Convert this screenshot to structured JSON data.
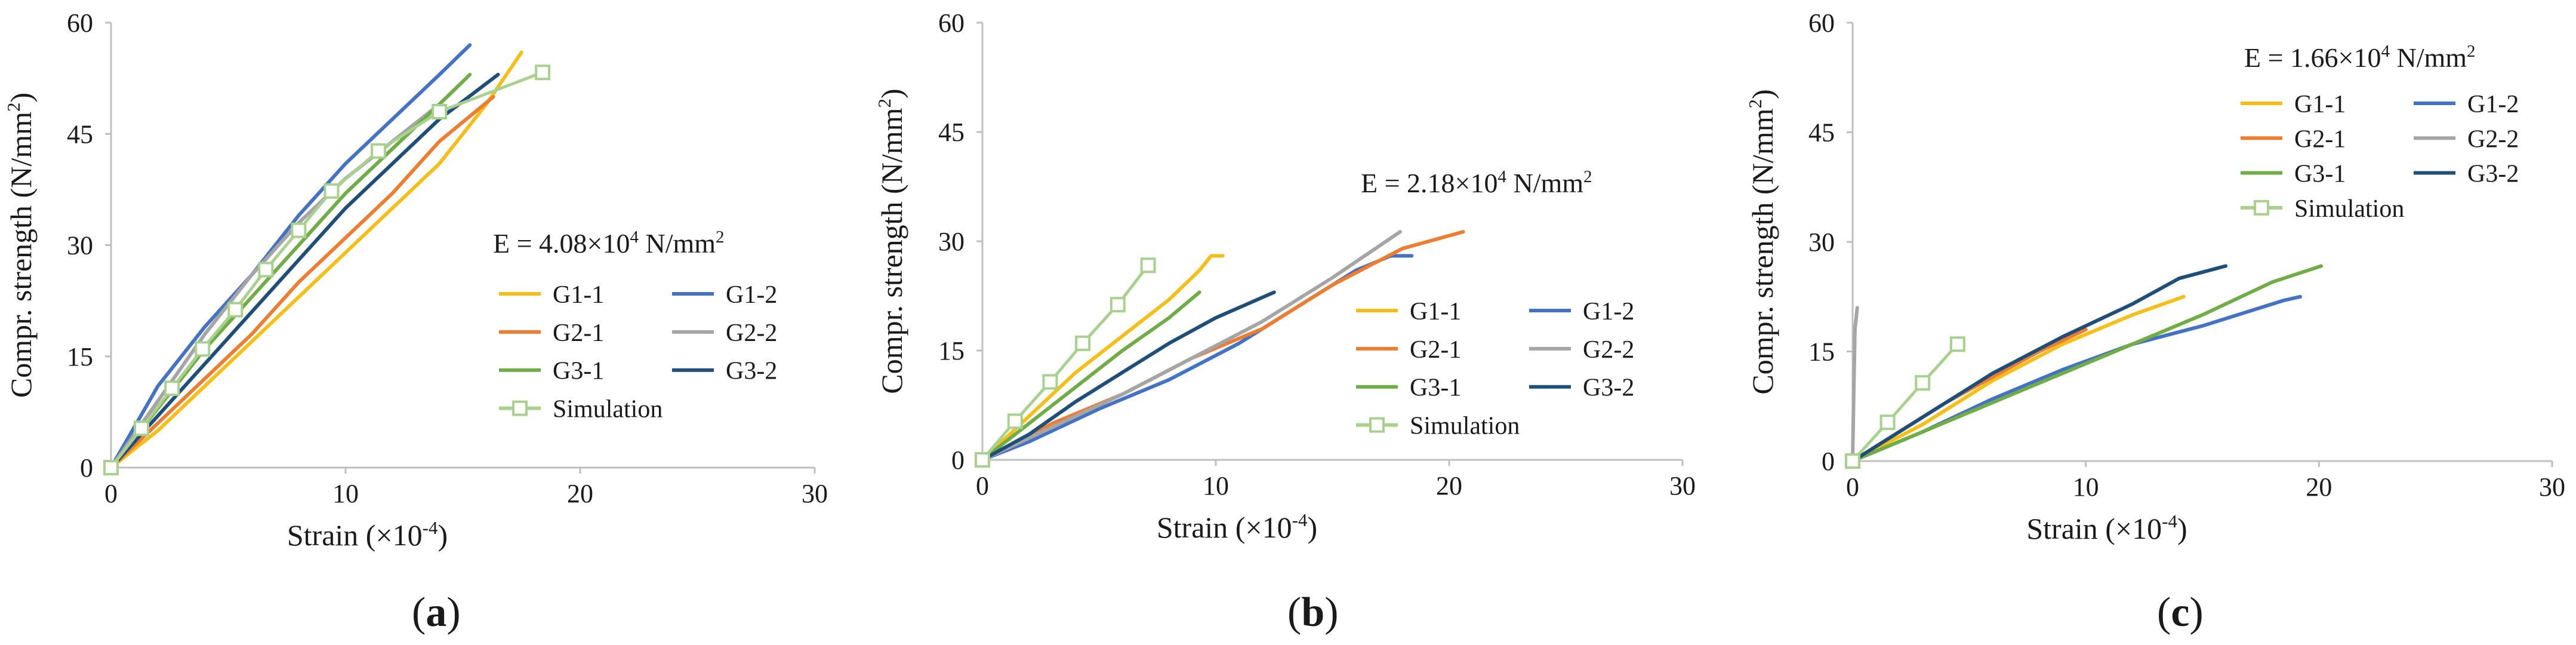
{
  "colors": {
    "G1-1": "#F5BF1A",
    "G1-2": "#4472C4",
    "G2-1": "#ED7D31",
    "G2-2": "#A5A5A5",
    "G3-1": "#70AD47",
    "G3-2": "#1F4E79",
    "Simulation": "#A9D18E",
    "axis": "#BFBFBF",
    "text": "#1a1a1a"
  },
  "chart_data": [
    {
      "type": "line",
      "panel_label": "(a)",
      "xlabel": "Strain (×10⁻⁴)",
      "ylabel": "Compr. strength (N/mm²)",
      "xlim": [
        0,
        30
      ],
      "ylim": [
        0,
        60
      ],
      "xticks": [
        "0",
        "10",
        "20",
        "30"
      ],
      "yticks": [
        "0",
        "15",
        "30",
        "45",
        "60"
      ],
      "grid": false,
      "legend_position": "center-right",
      "annotation": "E = 4.08×10⁴ N/mm²",
      "series": [
        {
          "name": "G1-1",
          "x": [
            0,
            2,
            4,
            6,
            8,
            10,
            12,
            14,
            16,
            17.5
          ],
          "y": [
            0,
            5,
            11,
            17,
            23,
            29,
            35,
            41,
            49,
            56
          ]
        },
        {
          "name": "G1-2",
          "x": [
            0,
            2,
            4,
            6,
            8,
            10,
            12,
            14,
            15.3
          ],
          "y": [
            0,
            11,
            19,
            26,
            34,
            41,
            47,
            53,
            57
          ]
        },
        {
          "name": "G2-1",
          "x": [
            0,
            2,
            4,
            6,
            8,
            10,
            12,
            14,
            16.3
          ],
          "y": [
            0,
            6,
            12,
            18,
            25,
            31,
            37,
            44,
            50
          ]
        },
        {
          "name": "G2-2",
          "x": [
            0,
            2,
            4,
            6,
            8,
            10,
            12,
            14
          ],
          "y": [
            0,
            9,
            18,
            26,
            33,
            39,
            44,
            49
          ]
        },
        {
          "name": "G3-1",
          "x": [
            0,
            2,
            4,
            6,
            8,
            10,
            12,
            14,
            15.3
          ],
          "y": [
            0,
            8,
            16,
            23,
            30,
            37,
            43,
            49,
            53
          ]
        },
        {
          "name": "G3-2",
          "x": [
            0,
            2,
            4,
            6,
            8,
            10,
            12,
            14,
            16.5
          ],
          "y": [
            0,
            7,
            14,
            21,
            28,
            35,
            41,
            47,
            53
          ]
        },
        {
          "name": "Simulation",
          "markers": true,
          "x": [
            0,
            1.3,
            2.6,
            3.9,
            5.3,
            6.6,
            8.0,
            9.4,
            11.4,
            14.0,
            18.4
          ],
          "y": [
            0,
            5.3,
            10.7,
            16.0,
            21.3,
            26.7,
            32.0,
            37.3,
            42.7,
            48.0,
            53.3
          ]
        }
      ]
    },
    {
      "type": "line",
      "panel_label": "(b)",
      "xlabel": "Strain (×10⁻⁴)",
      "ylabel": "Compr. strength (N/mm²)",
      "xlim": [
        0,
        30
      ],
      "ylim": [
        0,
        60
      ],
      "xticks": [
        "0",
        "10",
        "20",
        "30"
      ],
      "yticks": [
        "0",
        "15",
        "30",
        "45",
        "60"
      ],
      "grid": false,
      "legend_position": "bottom-right",
      "annotation": "E = 2.18×10⁴ N/mm²",
      "series": [
        {
          "name": "G1-1",
          "x": [
            0,
            2,
            4,
            6,
            8,
            9.3,
            9.8,
            10.3
          ],
          "y": [
            0,
            6,
            12,
            17,
            22,
            26,
            28,
            28
          ]
        },
        {
          "name": "G1-2",
          "x": [
            0,
            2,
            5,
            8,
            11,
            14,
            16,
            17.5,
            18.4
          ],
          "y": [
            0,
            2.5,
            7,
            11,
            16,
            22,
            26,
            28,
            28
          ]
        },
        {
          "name": "G2-1",
          "x": [
            0,
            3,
            6,
            9,
            12,
            15,
            18,
            20.6
          ],
          "y": [
            0,
            5,
            9,
            14,
            18,
            24,
            29,
            31.3
          ]
        },
        {
          "name": "G2-2",
          "x": [
            0,
            3,
            6,
            9,
            12,
            15,
            17.9
          ],
          "y": [
            0,
            4.5,
            9,
            14,
            19,
            25,
            31.3
          ]
        },
        {
          "name": "G3-1",
          "x": [
            0,
            2,
            4,
            6,
            8,
            9.3
          ],
          "y": [
            0,
            5,
            10,
            15,
            19.5,
            23
          ]
        },
        {
          "name": "G3-2",
          "x": [
            0,
            2,
            4,
            6,
            8,
            10,
            12.5
          ],
          "y": [
            0,
            3.5,
            8,
            12,
            16,
            19.5,
            23
          ]
        },
        {
          "name": "Simulation",
          "markers": true,
          "x": [
            0,
            1.4,
            2.9,
            4.3,
            5.8,
            7.1
          ],
          "y": [
            0,
            5.3,
            10.7,
            16.0,
            21.3,
            26.7
          ]
        }
      ]
    },
    {
      "type": "line",
      "panel_label": "(c)",
      "xlabel": "Strain (×10⁻⁴)",
      "ylabel": "Compr. strength (N/mm²)",
      "xlim": [
        0,
        30
      ],
      "ylim": [
        0,
        60
      ],
      "xticks": [
        "0",
        "10",
        "20",
        "30"
      ],
      "yticks": [
        "0",
        "15",
        "30",
        "45",
        "60"
      ],
      "grid": false,
      "legend_position": "top-right",
      "annotation": "E = 1.66×10⁴ N/mm²",
      "series": [
        {
          "name": "G1-1",
          "x": [
            0,
            3,
            6,
            9,
            12,
            14.2
          ],
          "y": [
            0,
            5,
            11,
            16,
            20,
            22.5
          ]
        },
        {
          "name": "G1-2",
          "x": [
            0,
            3,
            6,
            9,
            12,
            15,
            17,
            18.5,
            19.2
          ],
          "y": [
            0,
            4,
            8.5,
            12.5,
            16,
            18.5,
            20.5,
            22,
            22.5
          ]
        },
        {
          "name": "G2-1",
          "x": [
            0,
            2,
            4,
            6,
            8,
            10
          ],
          "y": [
            0,
            4,
            8,
            11.5,
            15,
            18
          ]
        },
        {
          "name": "G2-2",
          "x": [
            0,
            0.05,
            0.1,
            0.2
          ],
          "y": [
            0,
            10,
            18,
            21
          ]
        },
        {
          "name": "G3-1",
          "x": [
            0,
            3,
            6,
            9,
            12,
            15,
            18,
            20.1
          ],
          "y": [
            0,
            4,
            8,
            12,
            16,
            20,
            24.5,
            26.7
          ]
        },
        {
          "name": "G3-2",
          "x": [
            0,
            3,
            6,
            9,
            12,
            14,
            16
          ],
          "y": [
            0,
            6,
            12,
            17,
            21.5,
            25,
            26.7
          ]
        },
        {
          "name": "Simulation",
          "markers": true,
          "x": [
            0,
            1.5,
            3.0,
            4.5
          ],
          "y": [
            0,
            5.3,
            10.7,
            16.0
          ]
        }
      ]
    }
  ]
}
